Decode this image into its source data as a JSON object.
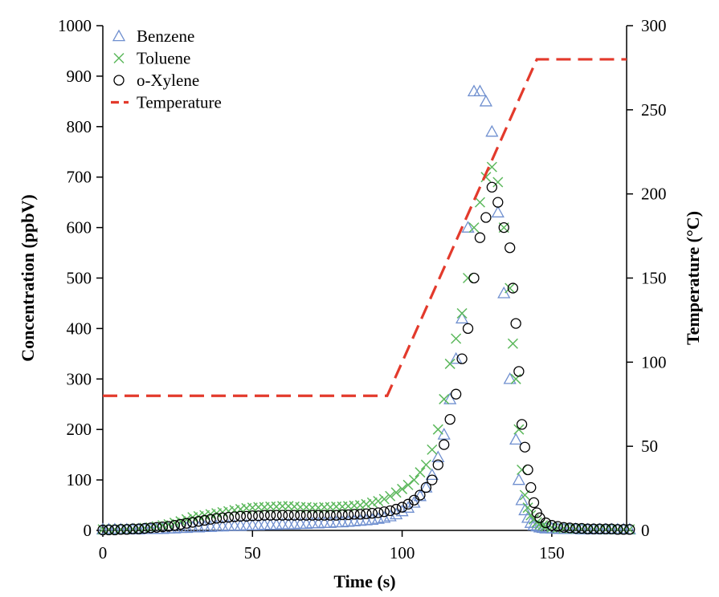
{
  "chart_data": {
    "type": "scatter",
    "title": "",
    "xlabel": "Time (s)",
    "ylabel": "Concentration (ppbV)",
    "y2label": "Temperature (°C)",
    "xlim": [
      0,
      175
    ],
    "ylim": [
      0,
      1000
    ],
    "y2lim": [
      0,
      300
    ],
    "xticks": [
      0,
      50,
      100,
      150
    ],
    "yticks": [
      0,
      100,
      200,
      300,
      400,
      500,
      600,
      700,
      800,
      900,
      1000
    ],
    "y2ticks": [
      0,
      50,
      100,
      150,
      200,
      250,
      300
    ],
    "grid": false,
    "legend_position": "top-left",
    "series": [
      {
        "name": "Benzene",
        "marker": "triangle",
        "color": "#6f8fcf",
        "axis": "left",
        "x": [
          0,
          2,
          4,
          6,
          8,
          10,
          12,
          14,
          16,
          18,
          20,
          22,
          24,
          26,
          28,
          30,
          32,
          34,
          36,
          38,
          40,
          42,
          44,
          46,
          48,
          50,
          52,
          54,
          56,
          58,
          60,
          62,
          64,
          66,
          68,
          70,
          72,
          74,
          76,
          78,
          80,
          82,
          84,
          86,
          88,
          90,
          92,
          94,
          96,
          98,
          100,
          102,
          104,
          106,
          108,
          110,
          112,
          114,
          116,
          118,
          120,
          122,
          124,
          126,
          128,
          130,
          132,
          134,
          136,
          138,
          139,
          140,
          141,
          142,
          143,
          144,
          145,
          146,
          147,
          148,
          150,
          152,
          154,
          156,
          158,
          160,
          162,
          164,
          166,
          168,
          170,
          172,
          174,
          176
        ],
        "y": [
          2,
          2,
          2,
          2,
          2,
          2,
          2,
          3,
          3,
          3,
          3,
          4,
          4,
          5,
          5,
          6,
          6,
          7,
          7,
          8,
          8,
          9,
          9,
          9,
          10,
          10,
          10,
          11,
          11,
          11,
          12,
          12,
          12,
          13,
          13,
          14,
          14,
          15,
          15,
          16,
          16,
          17,
          18,
          19,
          20,
          21,
          23,
          25,
          28,
          32,
          38,
          45,
          55,
          68,
          85,
          110,
          145,
          190,
          260,
          340,
          420,
          600,
          870,
          870,
          850,
          790,
          630,
          470,
          300,
          180,
          100,
          60,
          40,
          25,
          15,
          10,
          8,
          6,
          5,
          4,
          4,
          3,
          3,
          3,
          3,
          2,
          2,
          2,
          2,
          2,
          2,
          2,
          2,
          2
        ]
      },
      {
        "name": "Toluene",
        "marker": "x",
        "color": "#5cb85c",
        "axis": "left",
        "x": [
          0,
          2,
          4,
          6,
          8,
          10,
          12,
          14,
          16,
          18,
          20,
          22,
          24,
          26,
          28,
          30,
          32,
          34,
          36,
          38,
          40,
          42,
          44,
          46,
          48,
          50,
          52,
          54,
          56,
          58,
          60,
          62,
          64,
          66,
          68,
          70,
          72,
          74,
          76,
          78,
          80,
          82,
          84,
          86,
          88,
          90,
          92,
          94,
          96,
          98,
          100,
          102,
          104,
          106,
          108,
          110,
          112,
          114,
          116,
          118,
          120,
          122,
          124,
          126,
          128,
          130,
          132,
          134,
          136,
          137,
          138,
          139,
          140,
          141,
          142,
          143,
          144,
          145,
          146,
          147,
          148,
          150,
          152,
          154,
          156,
          158,
          160,
          162,
          164,
          166,
          168,
          170,
          172,
          174,
          176
        ],
        "y": [
          2,
          2,
          2,
          2,
          3,
          3,
          4,
          5,
          6,
          8,
          10,
          12,
          15,
          18,
          22,
          26,
          28,
          30,
          32,
          34,
          36,
          38,
          40,
          42,
          44,
          45,
          46,
          46,
          47,
          47,
          48,
          48,
          47,
          46,
          46,
          45,
          45,
          46,
          46,
          47,
          47,
          48,
          49,
          50,
          52,
          55,
          58,
          62,
          68,
          75,
          82,
          90,
          100,
          115,
          130,
          160,
          200,
          260,
          330,
          380,
          430,
          500,
          600,
          650,
          700,
          720,
          690,
          600,
          480,
          370,
          300,
          200,
          120,
          70,
          45,
          30,
          22,
          16,
          12,
          10,
          8,
          6,
          5,
          4,
          4,
          3,
          3,
          3,
          3,
          2,
          2,
          2,
          2,
          2,
          2
        ]
      },
      {
        "name": "o-Xylene",
        "marker": "circle",
        "color": "#000000",
        "axis": "left",
        "x": [
          0,
          2,
          4,
          6,
          8,
          10,
          12,
          14,
          16,
          18,
          20,
          22,
          24,
          26,
          28,
          30,
          32,
          34,
          36,
          38,
          40,
          42,
          44,
          46,
          48,
          50,
          52,
          54,
          56,
          58,
          60,
          62,
          64,
          66,
          68,
          70,
          72,
          74,
          76,
          78,
          80,
          82,
          84,
          86,
          88,
          90,
          92,
          94,
          96,
          98,
          100,
          102,
          104,
          106,
          108,
          110,
          112,
          114,
          116,
          118,
          120,
          122,
          124,
          126,
          128,
          130,
          132,
          134,
          136,
          137,
          138,
          139,
          140,
          141,
          142,
          143,
          144,
          145,
          146,
          148,
          150,
          152,
          154,
          156,
          158,
          160,
          162,
          164,
          166,
          168,
          170,
          172,
          174,
          176
        ],
        "y": [
          1,
          1,
          1,
          2,
          2,
          3,
          3,
          4,
          5,
          6,
          7,
          8,
          10,
          12,
          14,
          16,
          18,
          20,
          22,
          24,
          25,
          26,
          27,
          28,
          28,
          29,
          29,
          30,
          30,
          30,
          30,
          30,
          30,
          30,
          30,
          30,
          30,
          30,
          30,
          30,
          31,
          31,
          32,
          32,
          33,
          34,
          35,
          37,
          39,
          42,
          46,
          52,
          60,
          70,
          85,
          100,
          130,
          170,
          220,
          270,
          340,
          400,
          500,
          580,
          620,
          680,
          650,
          600,
          560,
          480,
          410,
          315,
          210,
          165,
          120,
          85,
          55,
          35,
          25,
          15,
          10,
          8,
          6,
          5,
          4,
          4,
          3,
          3,
          3,
          3,
          3,
          2,
          2,
          2
        ]
      },
      {
        "name": "Temperature",
        "marker": "dashed-line",
        "color": "#e33a2c",
        "axis": "right",
        "x": [
          0,
          95,
          145,
          175
        ],
        "y": [
          80,
          80,
          280,
          280
        ]
      }
    ]
  }
}
